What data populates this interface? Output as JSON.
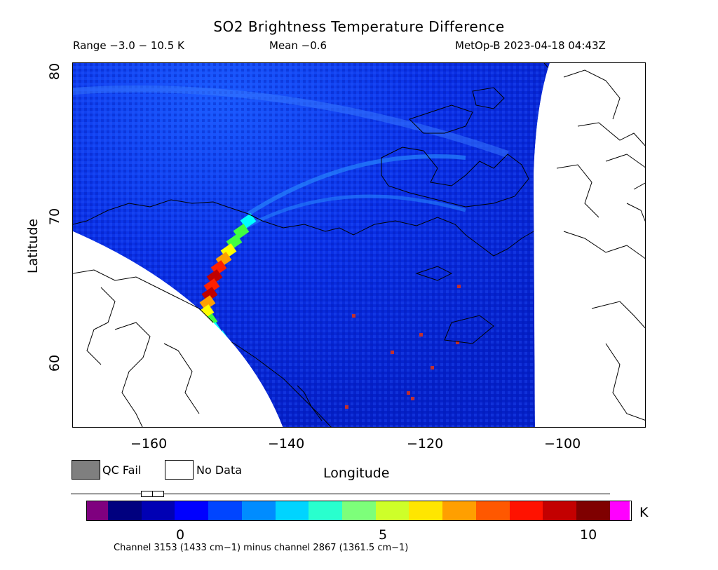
{
  "header": {
    "title": "SO2 Brightness Temperature Difference",
    "range": "Range −3.0 − 10.5 K",
    "mean": "Mean −0.6",
    "satellite": "MetOp-B 2023-04-18 04:43Z"
  },
  "axes": {
    "ylabel": "Latitude",
    "xlabel": "Longitude",
    "yticks": [
      "80",
      "70",
      "60"
    ],
    "xticks": [
      "−160",
      "−140",
      "−120",
      "−100"
    ]
  },
  "legend": {
    "qc_fail": "QC Fail",
    "no_data": "No Data",
    "qc_color": "#7f7f7f",
    "no_data_color": "#ffffff"
  },
  "colorbar": {
    "ticks": [
      "0",
      "5",
      "10"
    ],
    "unit": "K",
    "under_color": "#7f007f",
    "over_color": "#ff00ff",
    "colors": [
      "#00007f",
      "#0000b4",
      "#0000ff",
      "#0045ff",
      "#008cff",
      "#00d4ff",
      "#29ffce",
      "#7dff7a",
      "#ceff29",
      "#ffe600",
      "#ff9f00",
      "#ff5800",
      "#ff1200",
      "#c30000",
      "#7f0000"
    ]
  },
  "map": {
    "plume_colors": [
      "#00ffff",
      "#40ff40",
      "#ffff00",
      "#ffa000",
      "#ff2000",
      "#c00000"
    ],
    "hotspot_color": "#c03030"
  },
  "footer": {
    "channel_note": "Channel 3153 (1433 cm−1) minus channel 2867 (1361.5 cm−1)"
  }
}
